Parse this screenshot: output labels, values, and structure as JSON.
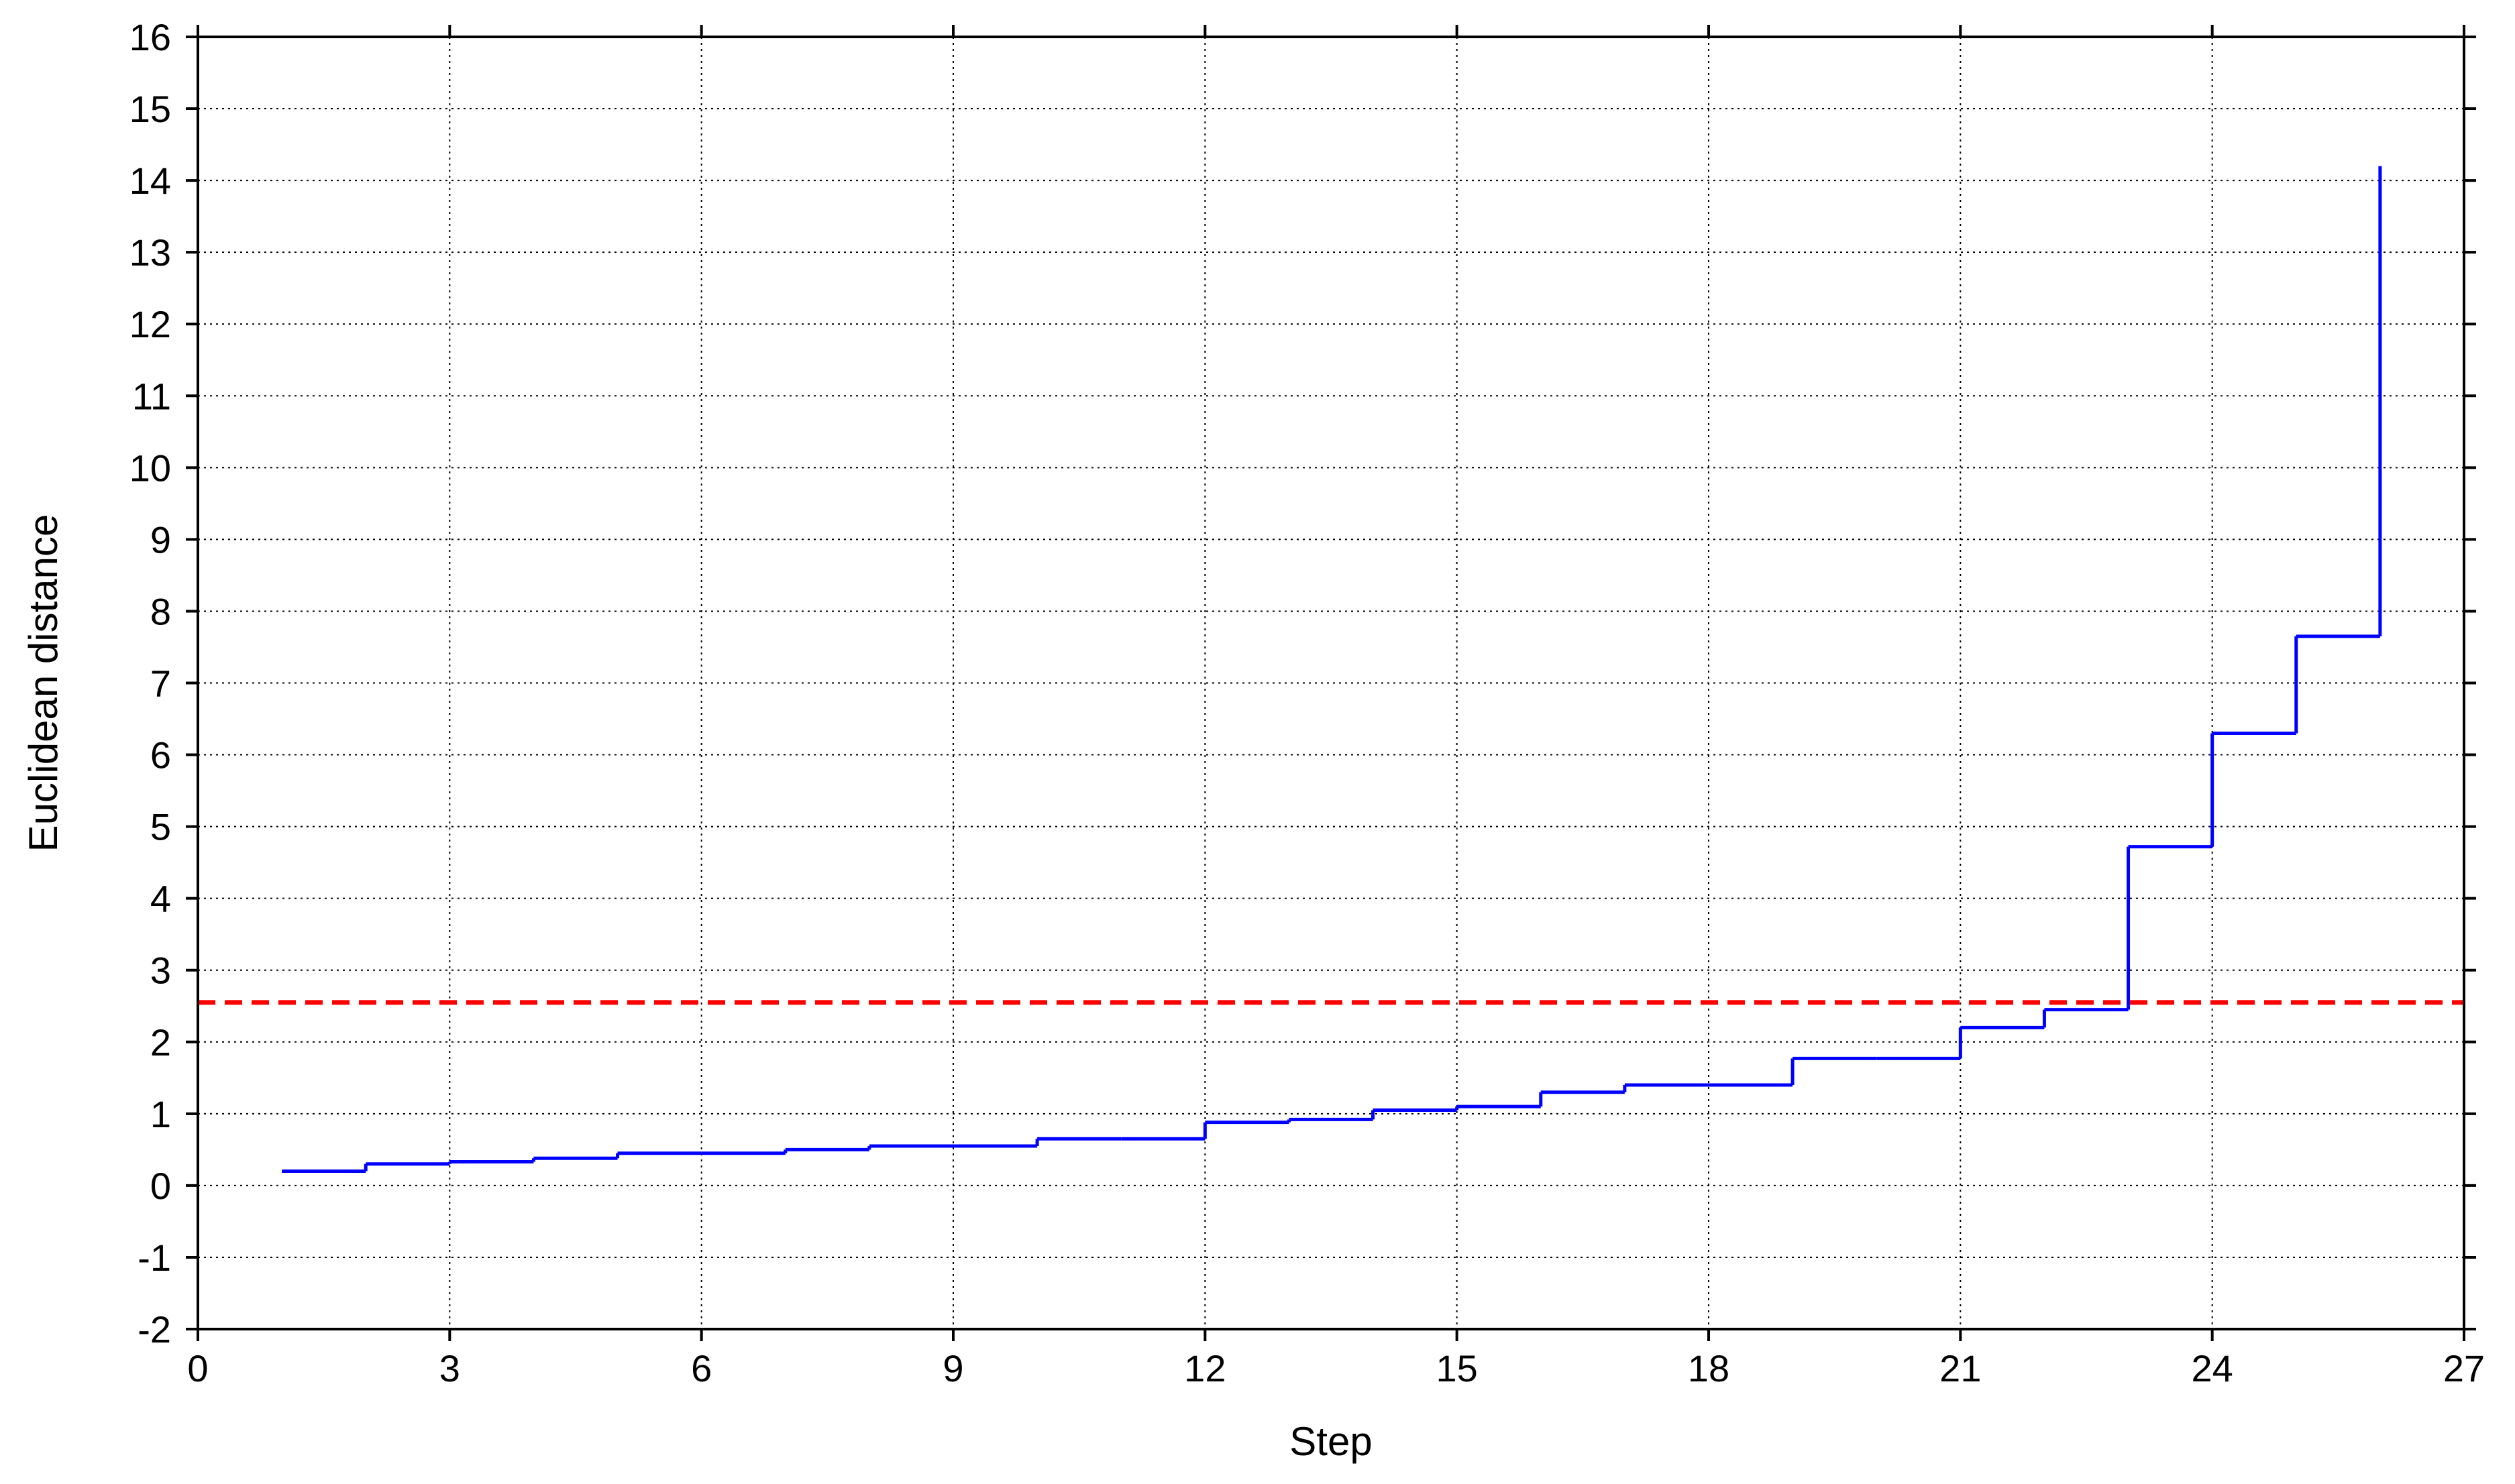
{
  "chart_data": {
    "type": "line",
    "title": "",
    "xlabel": "Step",
    "ylabel": "Euclidean distance",
    "xlim": [
      0,
      27
    ],
    "ylim": [
      -2,
      16
    ],
    "x_ticks": [
      0,
      3,
      6,
      9,
      12,
      15,
      18,
      21,
      24,
      27
    ],
    "y_ticks": [
      -2,
      -1,
      0,
      1,
      2,
      3,
      4,
      5,
      6,
      7,
      8,
      9,
      10,
      11,
      12,
      13,
      14,
      15,
      16
    ],
    "grid": true,
    "line_style": "step",
    "series": [
      {
        "x": [
          1,
          2,
          3,
          4,
          5,
          6,
          7,
          8,
          9,
          10,
          11,
          12,
          13,
          14,
          15,
          16,
          17,
          18,
          19,
          20,
          21,
          22,
          23,
          24,
          25,
          26
        ],
        "values": [
          0.2,
          0.3,
          0.33,
          0.38,
          0.45,
          0.45,
          0.5,
          0.55,
          0.55,
          0.65,
          0.65,
          0.88,
          0.92,
          1.05,
          1.1,
          1.3,
          1.4,
          1.4,
          1.77,
          1.77,
          2.2,
          2.45,
          4.72,
          6.3,
          7.65,
          14.2
        ],
        "color": "#0000ff"
      }
    ],
    "reference_lines": [
      {
        "orientation": "horizontal",
        "value": 2.55,
        "color": "#ff0000",
        "style": "dashed"
      }
    ]
  }
}
